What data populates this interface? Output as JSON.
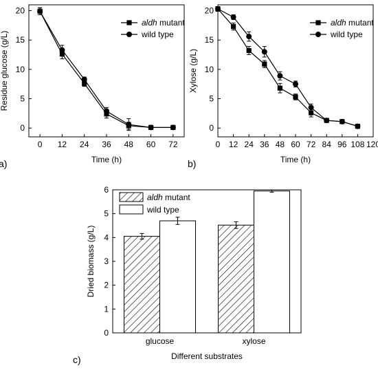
{
  "chart_data": [
    {
      "panel": "a)",
      "type": "line",
      "xlabel": "Time (h)",
      "ylabel": "Residue glucose (g/L)",
      "xlim": [
        -6,
        78
      ],
      "ylim": [
        -1.5,
        21
      ],
      "xticks": [
        0,
        12,
        24,
        36,
        48,
        60,
        72
      ],
      "yticks": [
        0,
        5,
        10,
        15,
        20
      ],
      "legend_position": "upper-right",
      "series": [
        {
          "name": "aldh mutant",
          "name_italic": "aldh",
          "name_rest": " mutant",
          "marker": "square",
          "x": [
            0,
            12,
            24,
            36,
            48,
            60,
            72
          ],
          "y": [
            19.9,
            12.6,
            7.6,
            2.4,
            0.4,
            0.1,
            0.1
          ],
          "err": [
            0.6,
            0.8,
            0.5,
            0.7,
            0.6,
            0.2,
            0.2
          ]
        },
        {
          "name": "wild type",
          "marker": "circle",
          "x": [
            0,
            12,
            24,
            36,
            48,
            60,
            72
          ],
          "y": [
            19.9,
            13.3,
            8.3,
            2.9,
            0.6,
            0.1,
            0.1
          ],
          "err": [
            0.6,
            0.8,
            0.4,
            0.6,
            1.0,
            0.2,
            0.3
          ]
        }
      ]
    },
    {
      "panel": "b)",
      "type": "line",
      "xlabel": "Time (h)",
      "ylabel": "Xylose (g/L)",
      "xlim": [
        0,
        120
      ],
      "ylim": [
        -1.5,
        21
      ],
      "xticks": [
        0,
        12,
        24,
        36,
        48,
        60,
        72,
        84,
        96,
        108,
        120
      ],
      "yticks": [
        0,
        5,
        10,
        15,
        20
      ],
      "legend_position": "upper-right",
      "series": [
        {
          "name": "aldh mutant",
          "name_italic": "aldh",
          "name_rest": " mutant",
          "marker": "square",
          "x": [
            0,
            12,
            24,
            36,
            48,
            60,
            72,
            84,
            96,
            108
          ],
          "y": [
            20.3,
            17.3,
            13.2,
            10.9,
            6.8,
            5.3,
            2.6,
            1.3,
            1.1,
            0.3
          ],
          "err": [
            0.4,
            0.6,
            0.7,
            0.6,
            0.8,
            0.5,
            0.7,
            0.3,
            0.2,
            0.2
          ]
        },
        {
          "name": "wild type",
          "marker": "circle",
          "x": [
            0,
            12,
            24,
            36,
            48,
            60,
            72,
            84,
            96,
            108
          ],
          "y": [
            20.3,
            18.9,
            15.6,
            13.0,
            8.9,
            7.5,
            3.5,
            1.3,
            1.1,
            0.3
          ],
          "err": [
            0.4,
            0.4,
            0.8,
            0.9,
            0.7,
            0.5,
            0.6,
            0.3,
            0.2,
            0.2
          ]
        }
      ]
    },
    {
      "panel": "c)",
      "type": "bar",
      "xlabel": "Different substrates",
      "ylabel": "Dried biomass (g/L)",
      "categories": [
        "glucose",
        "xylose"
      ],
      "ylim": [
        0,
        6
      ],
      "yticks": [
        0,
        1,
        2,
        3,
        4,
        5,
        6
      ],
      "legend_position": "upper-left",
      "series": [
        {
          "name": "aldh mutant",
          "name_italic": "aldh",
          "name_rest": " mutant",
          "fill": "hatched",
          "values": [
            4.05,
            4.52
          ],
          "err": [
            0.12,
            0.14
          ]
        },
        {
          "name": "wild type",
          "fill": "white",
          "values": [
            4.7,
            5.95
          ],
          "err": [
            0.15,
            0.05
          ]
        }
      ]
    }
  ]
}
